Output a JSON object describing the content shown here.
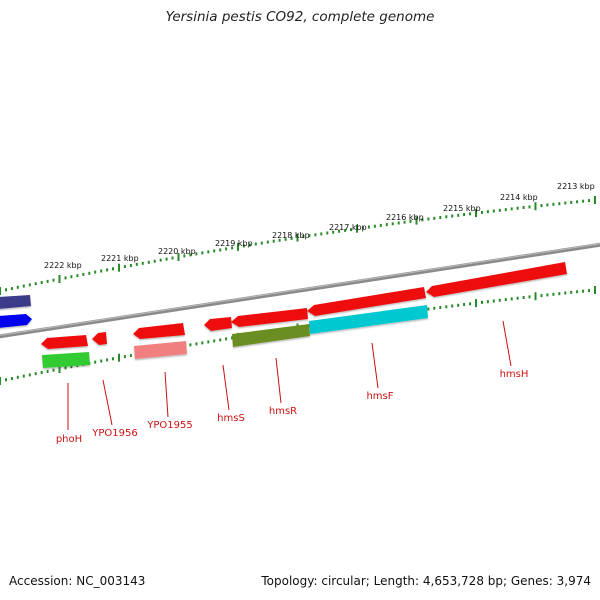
{
  "title": "Yersinia pestis CO92, complete genome",
  "footer": {
    "accession": "Accession: NC_003143",
    "stats": "Topology: circular; Length: 4,653,728 bp; Genes: 3,974"
  },
  "colors": {
    "backbone": "#8a8a8a",
    "tick_green": "#2a8a2a",
    "forward_gene": "#ee1111",
    "gene_label": "#cc1111",
    "hmsR_feature": "#6b8e23",
    "hmsF_feature": "#00c8d0",
    "phoH_feature": "#33cc33",
    "YPO1955_feature": "#f08080",
    "left_feature_dark": "#3a3a8a",
    "left_feature_blue": "#0000ee"
  },
  "scale_labels": [
    "2222 kbp",
    "2221 kbp",
    "2220 kbp",
    "2219 kbp",
    "2218 kbp",
    "2217 kbp",
    "2216 kbp",
    "2215 kbp",
    "2214 kbp",
    "2213 kbp"
  ],
  "gene_labels": [
    "phoH",
    "YPO1956",
    "YPO1955",
    "hmsS",
    "hmsR",
    "hmsF",
    "hmsH"
  ]
}
